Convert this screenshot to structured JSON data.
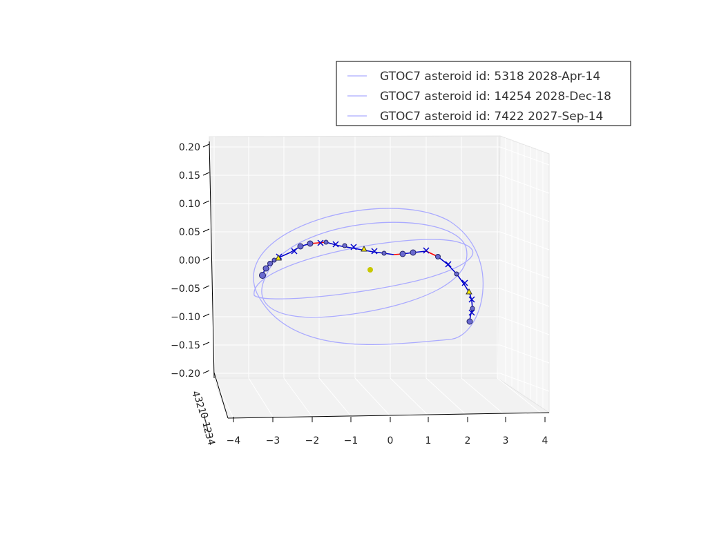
{
  "chart_data": {
    "type": "line",
    "projection": "3d",
    "grid": true,
    "legend_placement": "top-right",
    "xlim": [
      -4,
      4
    ],
    "zlim": [
      -0.2,
      0.2
    ],
    "x_tick_labels": [
      "−4",
      "−3",
      "−2",
      "−1",
      "0",
      "1",
      "2",
      "3",
      "4"
    ],
    "y_tick_labels": [
      "4",
      "3",
      "2",
      "1",
      "0",
      "−1",
      "−2",
      "−3",
      "−4"
    ],
    "z_tick_labels": [
      "0.20",
      "0.15",
      "0.10",
      "0.05",
      "0.00",
      "−0.05",
      "−0.10",
      "−0.15",
      "−0.20"
    ],
    "series": [
      {
        "name": "GTOC7 asteroid id: 5318 2028-Apr-14",
        "color": "#aaaaff",
        "marker": "line"
      },
      {
        "name": "GTOC7 asteroid id: 14254 2028-Dec-18",
        "color": "#aaaaff",
        "marker": "line"
      },
      {
        "name": "GTOC7 asteroid id: 7422 2027-Sep-14",
        "color": "#aaaaff",
        "marker": "line"
      }
    ],
    "sun": {
      "x": 0,
      "y": 0,
      "z": 0,
      "color": "#c8c800",
      "marker": "dot"
    },
    "trajectory": {
      "thrust_color": "#0000cc",
      "coast_color": "#ff0000",
      "node_color": "#6a6ad0",
      "arrival_color": "#ffee00"
    }
  }
}
